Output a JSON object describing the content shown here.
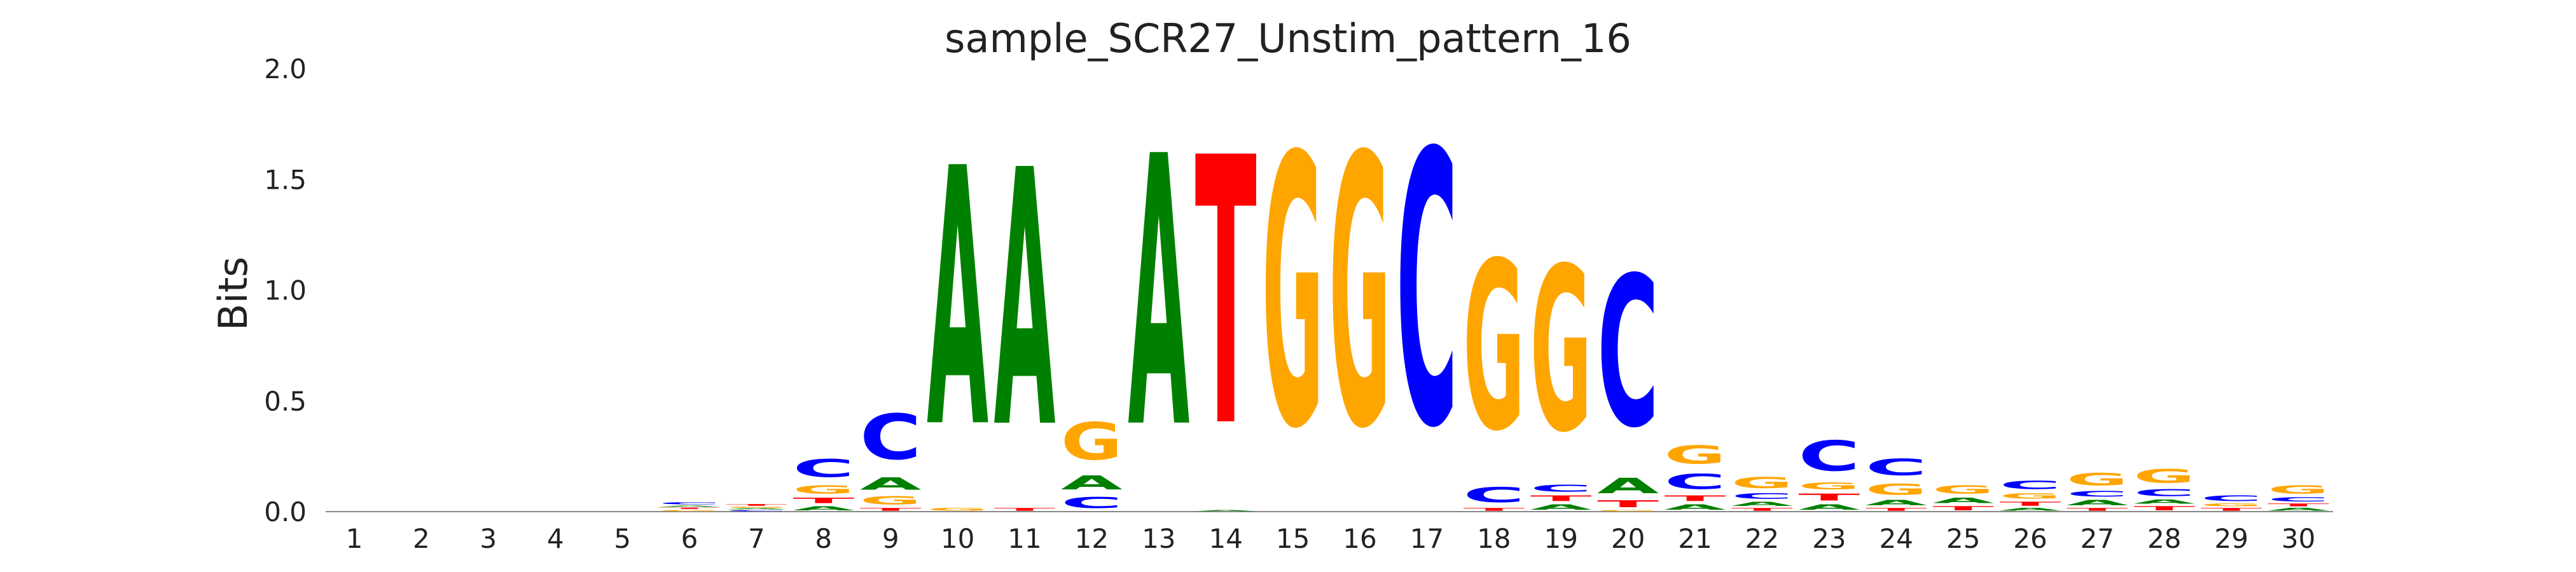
{
  "chart_data": {
    "type": "sequence-logo",
    "title": "sample_SCR27_Unstim_pattern_16",
    "ylabel": "Bits",
    "xlabel": "",
    "ylim": [
      0,
      2
    ],
    "yticks": [
      "0.0",
      "0.5",
      "1.0",
      "1.5",
      "2.0"
    ],
    "grid": false,
    "colors": {
      "A": "#008000",
      "C": "#0000ff",
      "G": "#ffa500",
      "T": "#ff0000"
    },
    "positions": [
      {
        "label": "1",
        "letters": []
      },
      {
        "label": "2",
        "letters": []
      },
      {
        "label": "3",
        "letters": []
      },
      {
        "label": "4",
        "letters": []
      },
      {
        "label": "5",
        "letters": []
      },
      {
        "label": "6",
        "letters": [
          [
            "G",
            0.01
          ],
          [
            "T",
            0.01
          ],
          [
            "A",
            0.01
          ],
          [
            "C",
            0.015
          ]
        ]
      },
      {
        "label": "7",
        "letters": [
          [
            "C",
            0.008
          ],
          [
            "A",
            0.008
          ],
          [
            "G",
            0.008
          ],
          [
            "T",
            0.012
          ]
        ]
      },
      {
        "label": "8",
        "letters": [
          [
            "A",
            0.03
          ],
          [
            "T",
            0.04
          ],
          [
            "G",
            0.06
          ],
          [
            "C",
            0.13
          ]
        ]
      },
      {
        "label": "9",
        "letters": [
          [
            "T",
            0.02
          ],
          [
            "G",
            0.06
          ],
          [
            "A",
            0.09
          ],
          [
            "C",
            0.33
          ]
        ]
      },
      {
        "label": "10",
        "letters": [
          [
            "G",
            0.02
          ],
          [
            "A",
            1.87
          ]
        ]
      },
      {
        "label": "11",
        "letters": [
          [
            "T",
            0.02
          ],
          [
            "A",
            1.86
          ]
        ]
      },
      {
        "label": "12",
        "letters": [
          [
            "C",
            0.08
          ],
          [
            "A",
            0.1
          ],
          [
            "G",
            0.27
          ]
        ]
      },
      {
        "label": "13",
        "letters": [
          [
            "A",
            1.96
          ]
        ]
      },
      {
        "label": "14",
        "letters": [
          [
            "A",
            0.01
          ],
          [
            "T",
            1.94
          ]
        ]
      },
      {
        "label": "15",
        "letters": [
          [
            "G",
            1.96
          ]
        ]
      },
      {
        "label": "16",
        "letters": [
          [
            "G",
            1.96
          ]
        ]
      },
      {
        "label": "17",
        "letters": [
          [
            "C",
            1.98
          ]
        ]
      },
      {
        "label": "18",
        "letters": [
          [
            "T",
            0.02
          ],
          [
            "C",
            0.11
          ],
          [
            "G",
            1.22
          ]
        ]
      },
      {
        "label": "19",
        "letters": [
          [
            "A",
            0.04
          ],
          [
            "T",
            0.04
          ],
          [
            "C",
            0.05
          ],
          [
            "G",
            1.19
          ]
        ]
      },
      {
        "label": "20",
        "letters": [
          [
            "G",
            0.01
          ],
          [
            "T",
            0.05
          ],
          [
            "A",
            0.11
          ],
          [
            "C",
            1.09
          ]
        ]
      },
      {
        "label": "21",
        "letters": [
          [
            "A",
            0.04
          ],
          [
            "T",
            0.04
          ],
          [
            "C",
            0.11
          ],
          [
            "G",
            0.13
          ]
        ]
      },
      {
        "label": "22",
        "letters": [
          [
            "T",
            0.02
          ],
          [
            "A",
            0.03
          ],
          [
            "C",
            0.04
          ],
          [
            "G",
            0.08
          ]
        ]
      },
      {
        "label": "23",
        "letters": [
          [
            "A",
            0.04
          ],
          [
            "T",
            0.05
          ],
          [
            "G",
            0.05
          ],
          [
            "C",
            0.22
          ]
        ]
      },
      {
        "label": "24",
        "letters": [
          [
            "T",
            0.02
          ],
          [
            "A",
            0.04
          ],
          [
            "G",
            0.08
          ],
          [
            "C",
            0.12
          ]
        ]
      },
      {
        "label": "25",
        "letters": [
          [
            "T",
            0.03
          ],
          [
            "A",
            0.04
          ],
          [
            "G",
            0.06
          ]
        ]
      },
      {
        "label": "26",
        "letters": [
          [
            "A",
            0.02
          ],
          [
            "T",
            0.03
          ],
          [
            "G",
            0.04
          ],
          [
            "C",
            0.06
          ]
        ]
      },
      {
        "label": "27",
        "letters": [
          [
            "T",
            0.02
          ],
          [
            "A",
            0.04
          ],
          [
            "C",
            0.04
          ],
          [
            "G",
            0.09
          ]
        ]
      },
      {
        "label": "28",
        "letters": [
          [
            "T",
            0.03
          ],
          [
            "A",
            0.03
          ],
          [
            "C",
            0.05
          ],
          [
            "G",
            0.1
          ]
        ]
      },
      {
        "label": "29",
        "letters": [
          [
            "T",
            0.02
          ],
          [
            "G",
            0.02
          ],
          [
            "C",
            0.04
          ]
        ]
      },
      {
        "label": "30",
        "letters": [
          [
            "A",
            0.02
          ],
          [
            "T",
            0.02
          ],
          [
            "C",
            0.03
          ],
          [
            "G",
            0.06
          ]
        ]
      }
    ]
  }
}
